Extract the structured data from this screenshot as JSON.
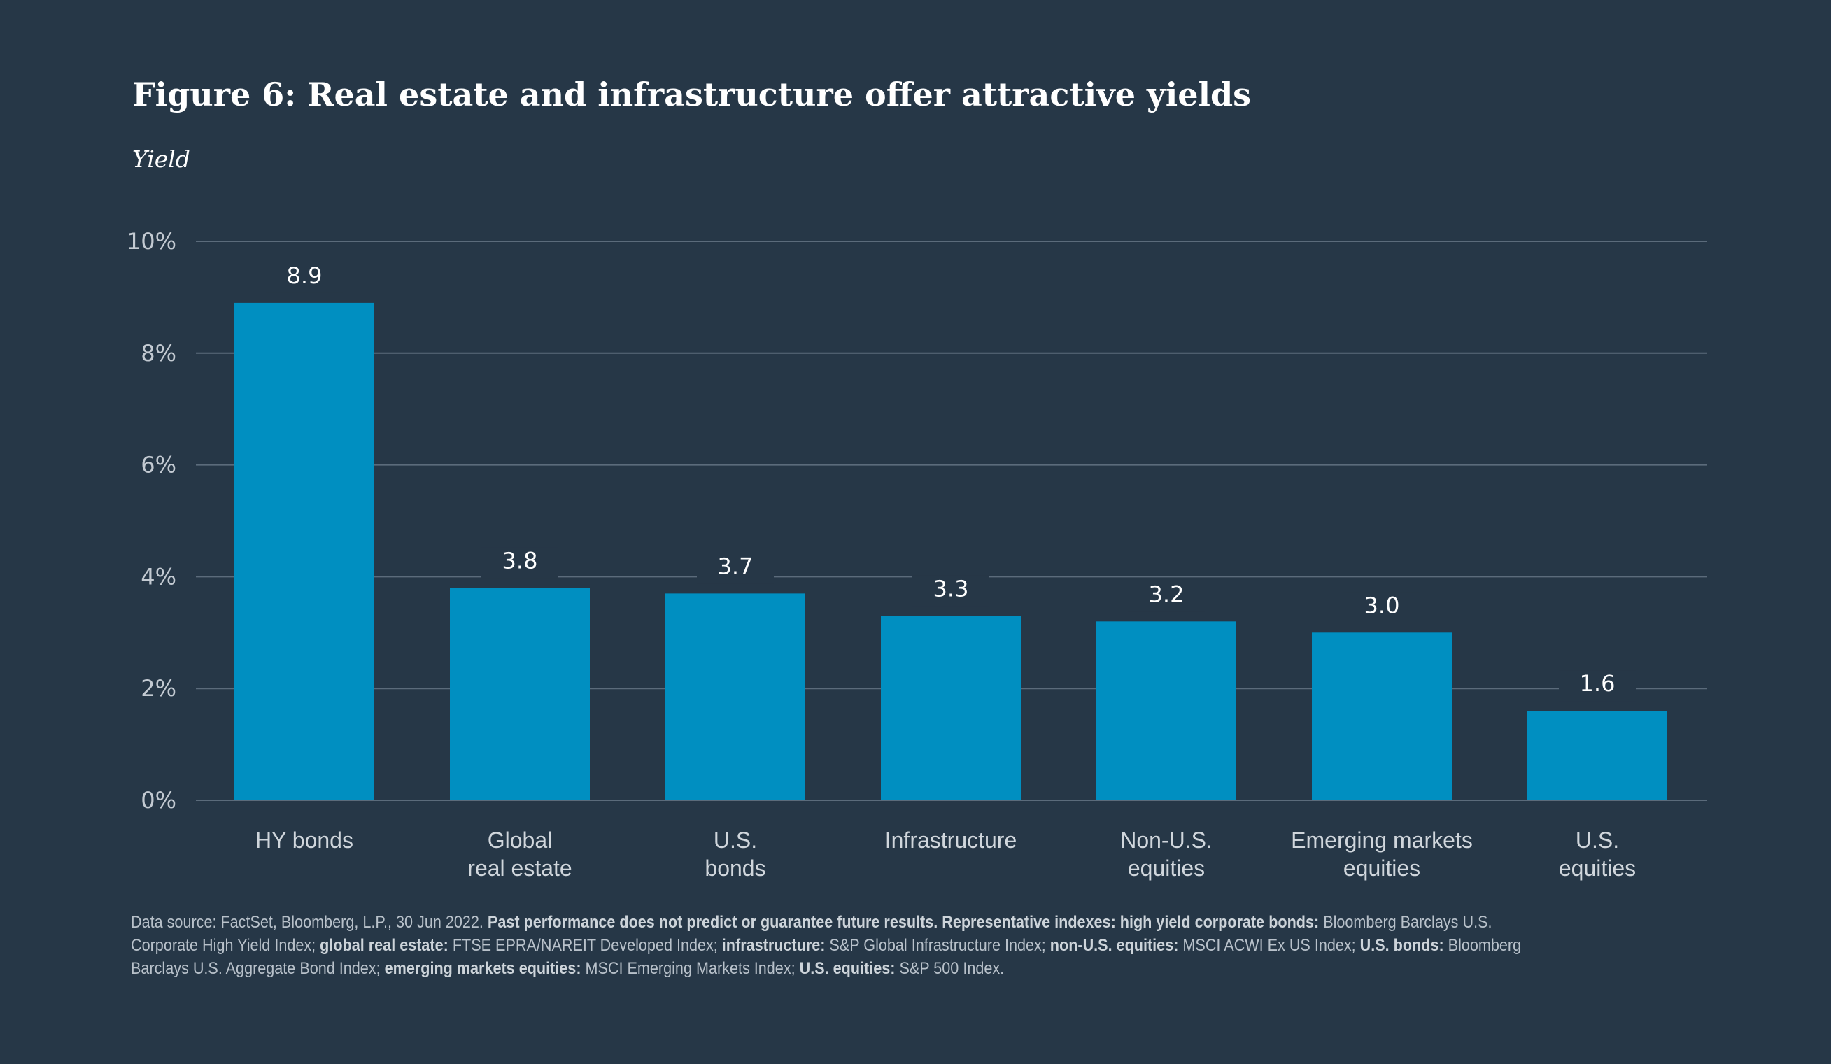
{
  "header": {
    "title": "Figure 6: Real estate and infrastructure offer attractive yields",
    "subtitle": "Yield"
  },
  "colors": {
    "background": "#263747",
    "bar": "#008fc1",
    "grid": "#5b6b7b",
    "text": "#ffffff"
  },
  "chart_data": {
    "type": "bar",
    "title": "Figure 6: Real estate and infrastructure offer attractive yields",
    "ylabel": "Yield",
    "xlabel": "",
    "ylim": [
      0,
      10
    ],
    "yticks": [
      0,
      2,
      4,
      6,
      8,
      10
    ],
    "ytick_labels": [
      "0%",
      "2%",
      "4%",
      "6%",
      "8%",
      "10%"
    ],
    "grid": true,
    "categories": [
      [
        "HY bonds"
      ],
      [
        "Global",
        "real estate"
      ],
      [
        "U.S.",
        "bonds"
      ],
      [
        "Infrastructure"
      ],
      [
        "Non-U.S.",
        "equities"
      ],
      [
        "Emerging markets",
        "equities"
      ],
      [
        "U.S.",
        "equities"
      ]
    ],
    "values": [
      8.9,
      3.8,
      3.7,
      3.3,
      3.2,
      3.0,
      1.6
    ],
    "data_labels": [
      "8.9",
      "3.8",
      "3.7",
      "3.3",
      "3.2",
      "3.0",
      "1.6"
    ]
  },
  "footnote": {
    "segments": [
      {
        "text": "Data source: FactSet, Bloomberg, L.P., 30 Jun 2022. ",
        "bold": false
      },
      {
        "text": "Past performance does not predict or guarantee future results. Representative indexes: high yield corporate bonds:",
        "bold": true
      },
      {
        "text": " Bloomberg Barclays U.S. Corporate High Yield Index; ",
        "bold": false
      },
      {
        "text": "global real estate:",
        "bold": true
      },
      {
        "text": " FTSE EPRA/NAREIT Developed Index; ",
        "bold": false
      },
      {
        "text": "infrastructure:",
        "bold": true
      },
      {
        "text": " S&P Global Infrastructure Index; ",
        "bold": false
      },
      {
        "text": "non-U.S. equities:",
        "bold": true
      },
      {
        "text": " MSCI ACWI Ex US Index; ",
        "bold": false
      },
      {
        "text": "U.S. bonds:",
        "bold": true
      },
      {
        "text": " Bloomberg Barclays U.S. Aggregate Bond Index; ",
        "bold": false
      },
      {
        "text": "emerging markets equities:",
        "bold": true
      },
      {
        "text": " MSCI Emerging Markets Index; ",
        "bold": false
      },
      {
        "text": "U.S. equities:",
        "bold": true
      },
      {
        "text": " S&P 500 Index.",
        "bold": false
      }
    ]
  }
}
